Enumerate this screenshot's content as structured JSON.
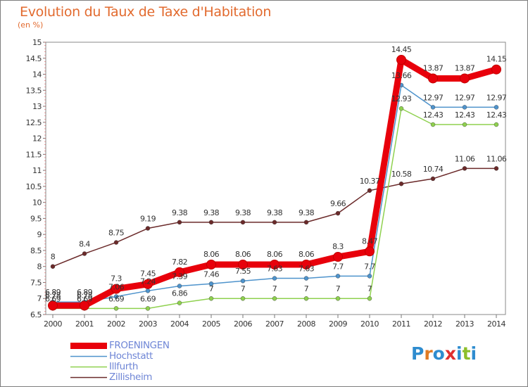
{
  "title": "Evolution du Taux de Taxe d'Habitation",
  "subtitle": "(en %)",
  "logo": {
    "letters": [
      "P",
      "r",
      "o",
      "x",
      "i",
      "t",
      "i"
    ],
    "colors": [
      "#2e8ccf",
      "#e07b24",
      "#2e8ccf",
      "#e02f2f",
      "#2e8ccf",
      "#8cbf2a",
      "#2e8ccf"
    ]
  },
  "chart_data": {
    "type": "line",
    "title": "Evolution du Taux de Taxe d'Habitation",
    "ylabel": "(en %)",
    "xlabel": "",
    "ylim": [
      6.5,
      15
    ],
    "yticks": [
      "6.5",
      "7",
      "7.5",
      "8",
      "8.5",
      "9",
      "9.5",
      "10",
      "10.5",
      "11",
      "11.5",
      "12",
      "12.5",
      "13",
      "13.5",
      "14",
      "14.5",
      "15"
    ],
    "x": [
      "2000",
      "2001",
      "2002",
      "2003",
      "2004",
      "2005",
      "2006",
      "2007",
      "2008",
      "2009",
      "2010",
      "2011",
      "2012",
      "2013",
      "2014"
    ],
    "grid": false,
    "legend_position": "bottom-left",
    "series": [
      {
        "name": "FROENINGEN",
        "color": "#e8000b",
        "values": [
          6.78,
          6.78,
          7.3,
          7.45,
          7.82,
          8.06,
          8.06,
          8.06,
          8.06,
          8.3,
          8.47,
          14.45,
          13.87,
          13.87,
          14.15
        ],
        "labels": [
          "6.78",
          "6.78",
          "7.3",
          "7.45",
          "7.82",
          "8.06",
          "8.06",
          "8.06",
          "8.06",
          "8.3",
          "8.47",
          "14.45",
          "13.87",
          "13.87",
          "14.15"
        ]
      },
      {
        "name": "Hochstatt",
        "color": "#4e93cc",
        "values": [
          6.89,
          6.89,
          7.06,
          7.24,
          7.39,
          7.46,
          7.55,
          7.63,
          7.63,
          7.7,
          7.7,
          13.66,
          12.97,
          12.97,
          12.97
        ],
        "labels": [
          "6.89",
          "6.89",
          "7.06",
          "7.24",
          "7.39",
          "7.46",
          "7.55",
          "7.63",
          "7.63",
          "7.7",
          "7.7",
          "13.66",
          "12.97",
          "12.97",
          "12.97"
        ]
      },
      {
        "name": "Illfurth",
        "color": "#8fd14f",
        "values": [
          6.69,
          6.69,
          6.69,
          6.69,
          6.86,
          7,
          7,
          7,
          7,
          7,
          7,
          12.93,
          12.43,
          12.43,
          12.43
        ],
        "labels": [
          "6.69",
          "6.69",
          "6.69",
          "6.69",
          "6.86",
          "7",
          "7",
          "7",
          "7",
          "7",
          "7",
          "12.93",
          "12.43",
          "12.43",
          "12.43"
        ]
      },
      {
        "name": "Zillisheim",
        "color": "#6b2a2a",
        "values": [
          8,
          8.4,
          8.75,
          9.19,
          9.38,
          9.38,
          9.38,
          9.38,
          9.38,
          9.66,
          10.37,
          10.58,
          10.74,
          11.06,
          11.06
        ],
        "labels": [
          "8",
          "8.4",
          "8.75",
          "9.19",
          "9.38",
          "9.38",
          "9.38",
          "9.38",
          "9.38",
          "9.66",
          "10.37",
          "10.58",
          "10.74",
          "11.06",
          "11.06"
        ]
      }
    ]
  }
}
